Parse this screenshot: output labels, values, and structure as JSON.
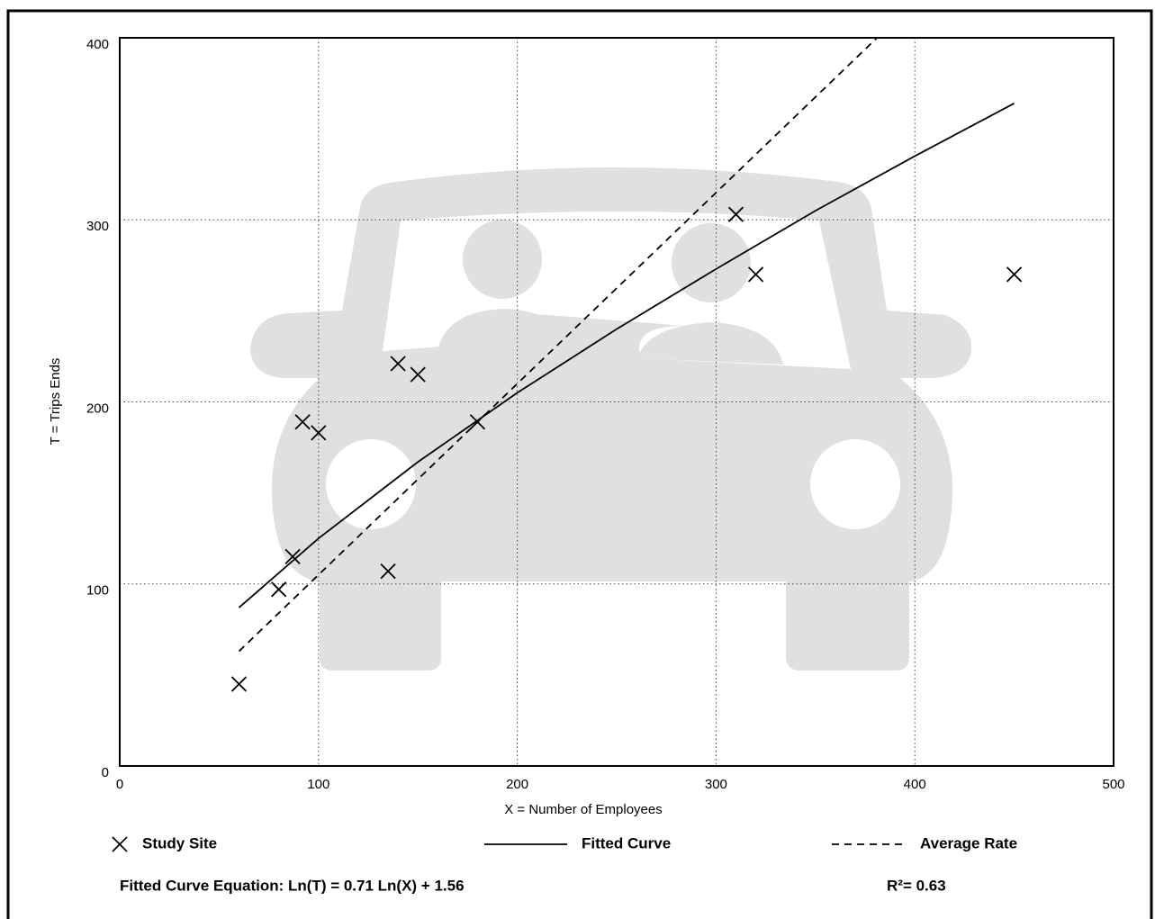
{
  "chart_data": {
    "type": "scatter",
    "x_label": "X = Number of Employees",
    "y_label": "T = Trips Ends",
    "xlim": [
      0,
      500
    ],
    "ylim": [
      0,
      400
    ],
    "xticks": [
      0,
      100,
      200,
      300,
      400,
      500
    ],
    "yticks": [
      0,
      100,
      200,
      300,
      400
    ],
    "grid": true,
    "series": [
      {
        "name": "Study Site",
        "type": "scatter",
        "marker": "x",
        "color": "#000000",
        "x": [
          60,
          80,
          87,
          92,
          100,
          135,
          140,
          150,
          180,
          310,
          320,
          450
        ],
        "values": [
          45,
          97,
          115,
          189,
          183,
          107,
          221,
          215,
          189,
          303,
          270,
          270
        ]
      },
      {
        "name": "Fitted Curve",
        "type": "line",
        "line_style": "solid",
        "color": "#000000",
        "x": [
          60,
          100,
          150,
          200,
          250,
          300,
          350,
          400,
          450
        ],
        "values": [
          87,
          125,
          167,
          205,
          240,
          273,
          305,
          335,
          364
        ]
      },
      {
        "name": "Average Rate",
        "type": "line",
        "line_style": "dashed",
        "color": "#000000",
        "x": [
          60,
          381
        ],
        "values": [
          63,
          400
        ]
      }
    ],
    "equation": "Fitted Curve Equation: Ln(T) = 0.71 Ln(X) + 1.56",
    "r_squared": "R²= 0.63"
  }
}
